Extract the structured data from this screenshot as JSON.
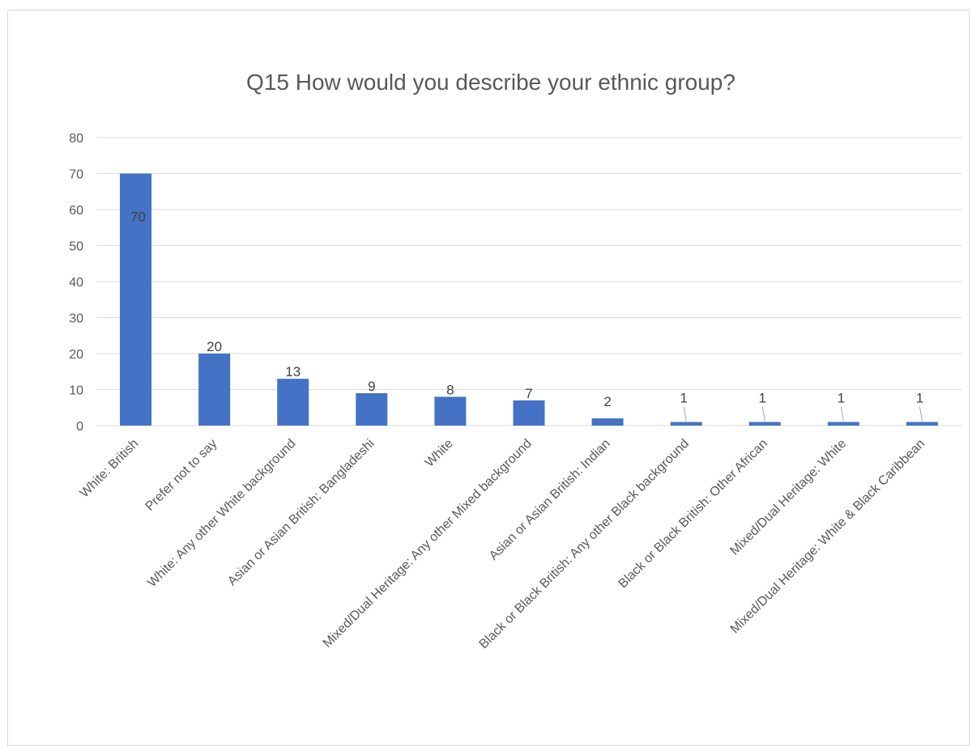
{
  "chart_data": {
    "type": "bar",
    "title": "Q15 How would you describe your ethnic group?",
    "categories": [
      "White: British",
      "Prefer not to say",
      "White: Any other White background",
      "Asian or Asian British: Bangladeshi",
      "White",
      "Mixed/Dual Heritage: Any other Mixed background",
      "Asian or Asian British: Indian",
      "Black or Black British: Any other Black background",
      "Black or Black British: Other African",
      "Mixed/Dual Heritage: White",
      "Mixed/Dual Heritage: White & Black Caribbean"
    ],
    "values": [
      70,
      20,
      13,
      9,
      8,
      7,
      2,
      1,
      1,
      1,
      1
    ],
    "ylim": [
      0,
      80
    ],
    "yticks": [
      0,
      10,
      20,
      30,
      40,
      50,
      60,
      70,
      80
    ],
    "grid": true,
    "legend": "none",
    "bar_color": "#4472c4"
  }
}
